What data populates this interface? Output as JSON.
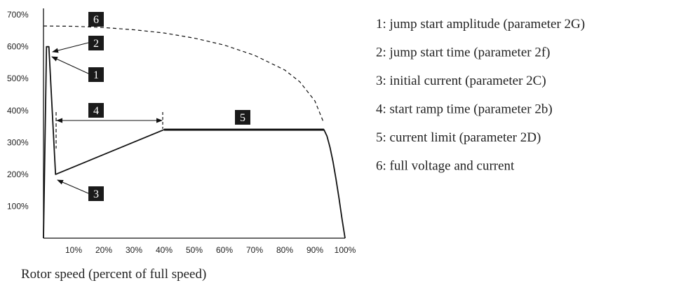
{
  "chart_data": {
    "type": "line",
    "x_ticks": [
      "10%",
      "20%",
      "30%",
      "40%",
      "50%",
      "60%",
      "70%",
      "80%",
      "90%",
      "100%"
    ],
    "y_ticks": [
      "100%",
      "200%",
      "300%",
      "400%",
      "500%",
      "600%",
      "700%"
    ],
    "xlabel": "Rotor speed (percent of full speed)",
    "xlim": [
      0,
      100
    ],
    "ylim": [
      0,
      720
    ],
    "series": [
      {
        "style": "solid",
        "x": [
          0,
          1,
          1.8,
          4,
          40,
          93,
          94,
          95,
          96,
          97,
          98,
          99,
          100
        ],
        "y": [
          0,
          600,
          600,
          200,
          340,
          340,
          320,
          285,
          240,
          185,
          125,
          60,
          0
        ]
      },
      {
        "style": "dashed",
        "x": [
          0,
          10,
          20,
          30,
          40,
          50,
          60,
          70,
          80,
          85,
          90,
          93
        ],
        "y": [
          665,
          664,
          660,
          653,
          643,
          627,
          605,
          573,
          527,
          490,
          430,
          360
        ]
      }
    ],
    "annotations": [
      {
        "id": "1",
        "text": "jump start amplitude (parameter 2G)"
      },
      {
        "id": "2",
        "text": "jump start time (parameter 2f)"
      },
      {
        "id": "3",
        "text": "initial current (parameter 2C)"
      },
      {
        "id": "4",
        "text": "start ramp time (parameter 2b)"
      },
      {
        "id": "5",
        "text": "current limit (parameter 2D)"
      },
      {
        "id": "6",
        "text": "full voltage and current"
      }
    ],
    "grid": false
  }
}
